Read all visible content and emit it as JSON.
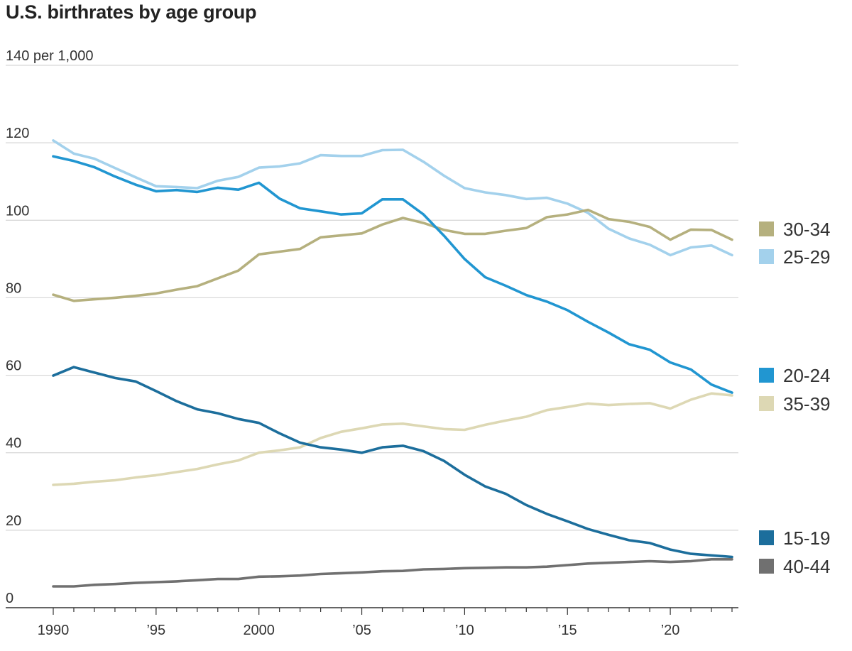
{
  "chart_data": {
    "type": "line",
    "title": "U.S. birthrates by age group",
    "unit_label": "per 1,000",
    "ylim": [
      0,
      140
    ],
    "yticks": [
      0,
      20,
      40,
      60,
      80,
      100,
      120,
      140
    ],
    "xlim": [
      1990,
      2023
    ],
    "xticks": [
      {
        "value": 1990,
        "label": "1990"
      },
      {
        "value": 1995,
        "label": "’95"
      },
      {
        "value": 2000,
        "label": "2000"
      },
      {
        "value": 2005,
        "label": "’05"
      },
      {
        "value": 2010,
        "label": "’10"
      },
      {
        "value": 2015,
        "label": "’15"
      },
      {
        "value": 2020,
        "label": "’20"
      }
    ],
    "grid": true,
    "legend": "right, at line ends",
    "x": [
      1990,
      1991,
      1992,
      1993,
      1994,
      1995,
      1996,
      1997,
      1998,
      1999,
      2000,
      2001,
      2002,
      2003,
      2004,
      2005,
      2006,
      2007,
      2008,
      2009,
      2010,
      2011,
      2012,
      2013,
      2014,
      2015,
      2016,
      2017,
      2018,
      2019,
      2020,
      2021,
      2022,
      2023
    ],
    "series": [
      {
        "name": "30-34",
        "color": "#b5b07e",
        "values": [
          80.8,
          79.2,
          79.6,
          80.0,
          80.5,
          81.1,
          82.1,
          83.0,
          85.0,
          87.0,
          91.2,
          91.9,
          92.6,
          95.6,
          96.1,
          96.6,
          98.9,
          100.6,
          99.3,
          97.5,
          96.5,
          96.5,
          97.3,
          98.0,
          100.8,
          101.5,
          102.7,
          100.3,
          99.6,
          98.3,
          95.0,
          97.6,
          97.5,
          95.0
        ]
      },
      {
        "name": "25-29",
        "color": "#a3d1ec",
        "values": [
          120.6,
          117.2,
          115.9,
          113.5,
          111.1,
          108.8,
          108.6,
          108.3,
          110.2,
          111.2,
          113.6,
          113.9,
          114.7,
          116.8,
          116.6,
          116.6,
          118.1,
          118.2,
          115.1,
          111.5,
          108.3,
          107.2,
          106.5,
          105.5,
          105.8,
          104.3,
          101.9,
          97.8,
          95.3,
          93.7,
          91.0,
          93.0,
          93.5,
          91.0
        ]
      },
      {
        "name": "20-24",
        "color": "#2196d1",
        "values": [
          116.5,
          115.3,
          113.7,
          111.3,
          109.2,
          107.5,
          107.8,
          107.3,
          108.4,
          107.9,
          109.7,
          105.6,
          103.1,
          102.3,
          101.5,
          101.8,
          105.4,
          105.4,
          101.5,
          96.0,
          90.0,
          85.3,
          83.1,
          80.7,
          79.0,
          76.8,
          73.8,
          71.0,
          68.0,
          66.6,
          63.3,
          61.5,
          57.6,
          55.5
        ]
      },
      {
        "name": "35-39",
        "color": "#ddd8b4",
        "values": [
          31.7,
          32.0,
          32.5,
          32.9,
          33.6,
          34.2,
          35.0,
          35.8,
          37.0,
          38.0,
          40.0,
          40.6,
          41.4,
          43.8,
          45.4,
          46.3,
          47.3,
          47.5,
          46.8,
          46.1,
          45.9,
          47.2,
          48.3,
          49.3,
          51.0,
          51.8,
          52.7,
          52.3,
          52.6,
          52.8,
          51.4,
          53.7,
          55.3,
          54.8
        ]
      },
      {
        "name": "15-19",
        "color": "#1c6e9c",
        "values": [
          59.9,
          62.1,
          60.7,
          59.3,
          58.4,
          55.9,
          53.3,
          51.2,
          50.2,
          48.7,
          47.7,
          45.0,
          42.6,
          41.4,
          40.8,
          40.0,
          41.4,
          41.8,
          40.4,
          37.9,
          34.3,
          31.3,
          29.4,
          26.5,
          24.2,
          22.3,
          20.3,
          18.8,
          17.4,
          16.7,
          15.0,
          13.9,
          13.5,
          13.1
        ]
      },
      {
        "name": "40-44",
        "color": "#707070",
        "values": [
          5.5,
          5.5,
          5.9,
          6.1,
          6.4,
          6.6,
          6.8,
          7.1,
          7.4,
          7.4,
          8.0,
          8.1,
          8.3,
          8.7,
          8.9,
          9.1,
          9.4,
          9.5,
          9.9,
          10.0,
          10.2,
          10.3,
          10.4,
          10.4,
          10.6,
          11.0,
          11.4,
          11.6,
          11.8,
          12.0,
          11.8,
          12.0,
          12.5,
          12.5
        ]
      }
    ],
    "legend_items": [
      {
        "name": "30-34",
        "color": "#b5b07e"
      },
      {
        "name": "25-29",
        "color": "#a3d1ec"
      },
      {
        "name": "20-24",
        "color": "#2196d1"
      },
      {
        "name": "35-39",
        "color": "#ddd8b4"
      },
      {
        "name": "15-19",
        "color": "#1c6e9c"
      },
      {
        "name": "40-44",
        "color": "#707070"
      }
    ]
  }
}
